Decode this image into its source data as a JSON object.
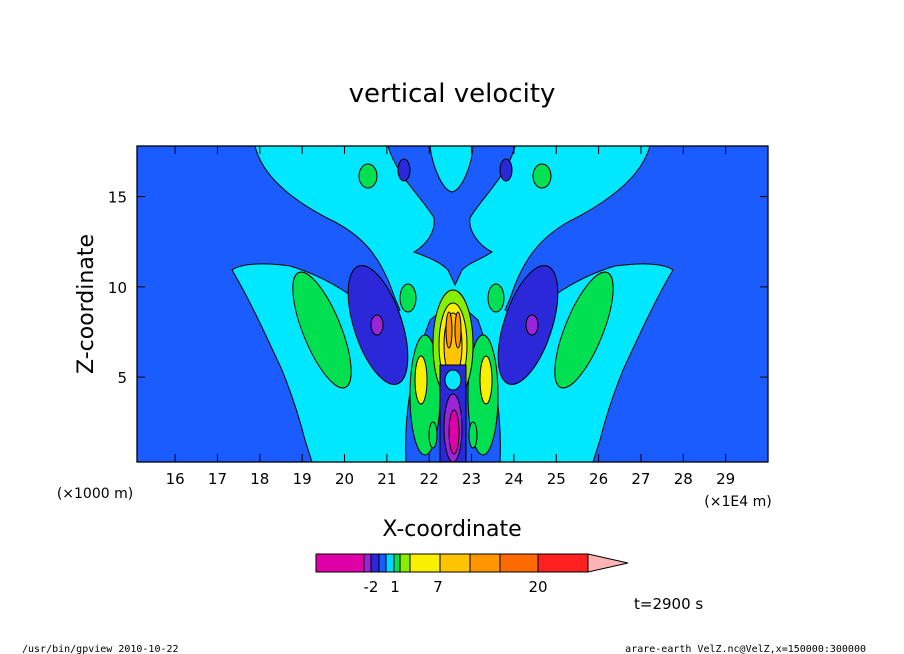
{
  "chart_data": {
    "type": "contour",
    "title": "vertical velocity",
    "xlabel": "X-coordinate",
    "ylabel": "Z-coordinate",
    "x_unit": "(×1E4 m)",
    "y_unit": "(×1000 m)",
    "xlim": [
      15.1,
      30.0
    ],
    "ylim": [
      0.3,
      17.8
    ],
    "x_ticks": [
      "16",
      "17",
      "18",
      "19",
      "20",
      "21",
      "22",
      "23",
      "24",
      "25",
      "26",
      "27",
      "28",
      "29"
    ],
    "y_ticks": [
      "5",
      "10",
      "15"
    ],
    "colorbar": {
      "colors": [
        "#e000a8",
        "#9a24d8",
        "#2a28d8",
        "#1a5cff",
        "#00d8ff",
        "#00e050",
        "#88ee00",
        "#f8f000",
        "#ffc400",
        "#ff9600",
        "#ff6a00",
        "#ff2020",
        "#ff7474",
        "#ffb4b4"
      ],
      "labels": [
        "-2",
        "1",
        "7",
        "20"
      ]
    },
    "time_label": "t=2900 s"
  },
  "footer": {
    "left": "/usr/bin/gpview   2010-10-22",
    "right": "arare-earth_VelZ.nc@VelZ,x=150000:300000"
  }
}
